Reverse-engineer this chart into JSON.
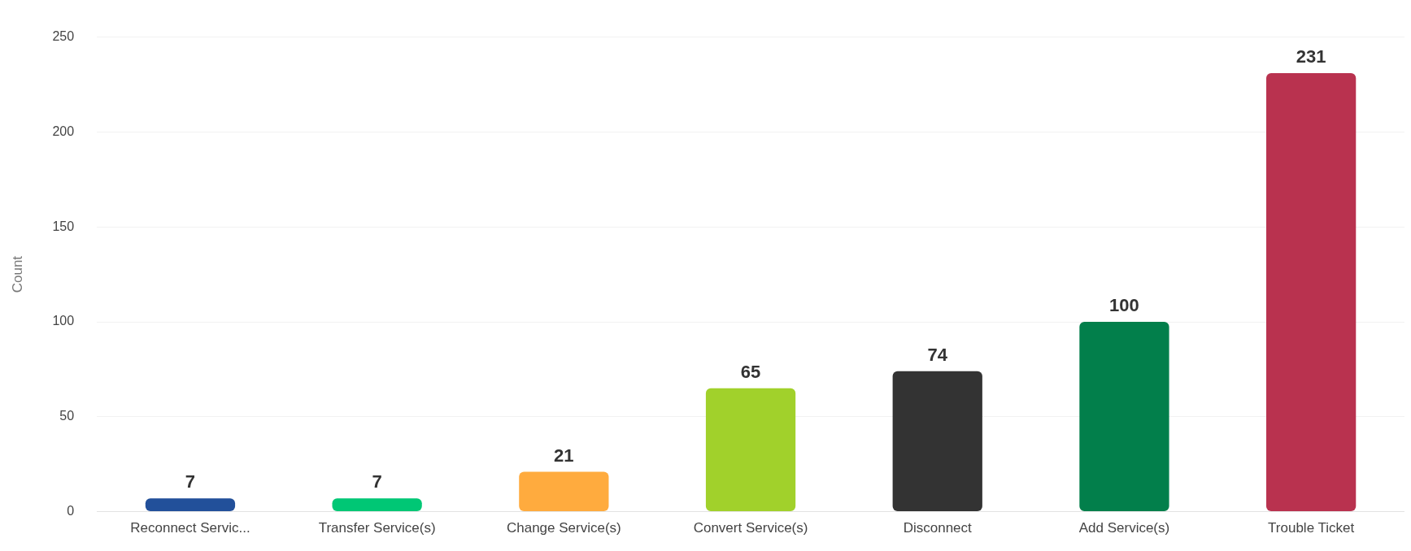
{
  "chart_data": {
    "type": "bar",
    "ylabel": "Count",
    "categories": [
      "Reconnect Servic...",
      "Transfer Service(s)",
      "Change Service(s)",
      "Convert Service(s)",
      "Disconnect",
      "Add Service(s)",
      "Trouble Ticket"
    ],
    "values": [
      7,
      7,
      21,
      65,
      74,
      100,
      231
    ],
    "colors": [
      "#22509a",
      "#00c775",
      "#ffab3e",
      "#a1d12b",
      "#333333",
      "#027f4b",
      "#b9324f"
    ],
    "ylim": [
      0,
      250
    ],
    "yticks": [
      0,
      50,
      100,
      150,
      200,
      250
    ],
    "grid": "y",
    "data_labels": true,
    "legend": false
  }
}
